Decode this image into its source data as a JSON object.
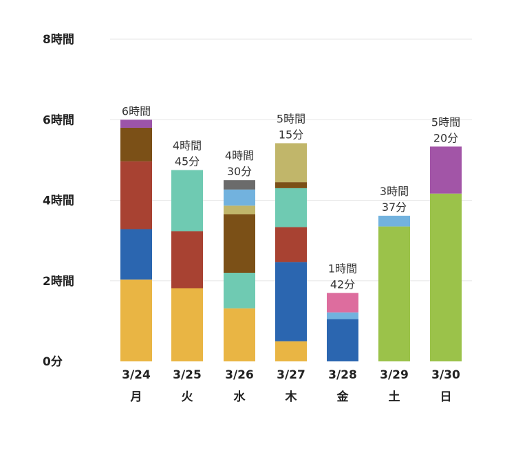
{
  "chart_data": {
    "type": "bar",
    "stacked": true,
    "title": "",
    "xlabel": "",
    "ylabel": "",
    "ylim": [
      0,
      480
    ],
    "y_unit": "minutes",
    "grid": true,
    "legend": "none",
    "y_ticks": [
      {
        "value": 0,
        "label": "0分"
      },
      {
        "value": 120,
        "label": "2時間"
      },
      {
        "value": 240,
        "label": "4時間"
      },
      {
        "value": 360,
        "label": "6時間"
      },
      {
        "value": 480,
        "label": "8時間"
      }
    ],
    "categories": [
      "3/24",
      "3/25",
      "3/26",
      "3/27",
      "3/28",
      "3/29",
      "3/30"
    ],
    "weekdays": [
      "月",
      "火",
      "水",
      "木",
      "金",
      "土",
      "日"
    ],
    "totals": [
      [
        "6時間"
      ],
      [
        "4時間",
        "45分"
      ],
      [
        "4時間",
        "30分"
      ],
      [
        "5時間",
        "15分"
      ],
      [
        "1時間",
        "42分"
      ],
      [
        "3時間",
        "37分"
      ],
      [
        "5時間",
        "20分"
      ]
    ],
    "stacks": [
      [
        {
          "value": 122,
          "color": "#e9b544"
        },
        {
          "value": 75,
          "color": "#2b66b0"
        },
        {
          "value": 101,
          "color": "#a84232"
        },
        {
          "value": 50,
          "color": "#7b5017"
        },
        {
          "value": 12,
          "color": "#9c54a9"
        }
      ],
      [
        {
          "value": 109,
          "color": "#e9b544"
        },
        {
          "value": 85,
          "color": "#a84232"
        },
        {
          "value": 91,
          "color": "#6fcab2"
        }
      ],
      [
        {
          "value": 79,
          "color": "#e9b544"
        },
        {
          "value": 53,
          "color": "#6fcab2"
        },
        {
          "value": 87,
          "color": "#7b5017"
        },
        {
          "value": 13,
          "color": "#c1b66a"
        },
        {
          "value": 24,
          "color": "#72b2de"
        },
        {
          "value": 14,
          "color": "#6b6b6b"
        }
      ],
      [
        {
          "value": 30,
          "color": "#e9b544"
        },
        {
          "value": 118,
          "color": "#2b66b0"
        },
        {
          "value": 52,
          "color": "#a84232"
        },
        {
          "value": 58,
          "color": "#6fcab2"
        },
        {
          "value": 9,
          "color": "#7b5017"
        },
        {
          "value": 58,
          "color": "#c1b66a"
        }
      ],
      [
        {
          "value": 63,
          "color": "#2b66b0"
        },
        {
          "value": 10,
          "color": "#72b2de"
        },
        {
          "value": 29,
          "color": "#dd6d9e"
        }
      ],
      [
        {
          "value": 201,
          "color": "#9bc24a"
        },
        {
          "value": 16,
          "color": "#72b2de"
        }
      ],
      [
        {
          "value": 250,
          "color": "#9bc24a"
        },
        {
          "value": 70,
          "color": "#a255a7"
        }
      ]
    ]
  }
}
